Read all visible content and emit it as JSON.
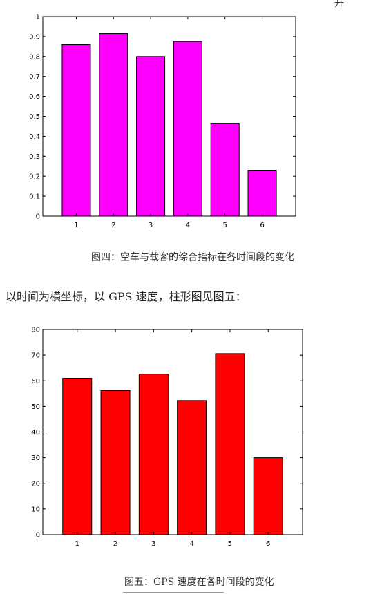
{
  "corner_text": "开",
  "chart_data": [
    {
      "type": "bar",
      "categories": [
        "1",
        "2",
        "3",
        "4",
        "5",
        "6"
      ],
      "values": [
        0.86,
        0.915,
        0.8,
        0.875,
        0.465,
        0.23
      ],
      "ylim": [
        0,
        1
      ],
      "yticks": [
        "0",
        "0.1",
        "0.2",
        "0.3",
        "0.4",
        "0.5",
        "0.6",
        "0.7",
        "0.8",
        "0.9",
        "1"
      ],
      "grid": false,
      "bar_color": "#ff00ff",
      "title": "",
      "xlabel": "",
      "ylabel": ""
    },
    {
      "type": "bar",
      "categories": [
        "1",
        "2",
        "3",
        "4",
        "5",
        "6"
      ],
      "values": [
        61,
        56.2,
        62.6,
        52.3,
        70.6,
        30
      ],
      "ylim": [
        0,
        80
      ],
      "yticks": [
        "0",
        "10",
        "20",
        "30",
        "40",
        "50",
        "60",
        "70",
        "80"
      ],
      "grid": false,
      "bar_color": "#ff0000",
      "title": "",
      "xlabel": "",
      "ylabel": ""
    }
  ],
  "captions": {
    "figure4": "图四：空车与载客的综合指标在各时间段的变化",
    "figure5": "图五：GPS 速度在各时间段的变化"
  },
  "paragraph": "以时间为横坐标，以 GPS 速度，柱形图见图五："
}
